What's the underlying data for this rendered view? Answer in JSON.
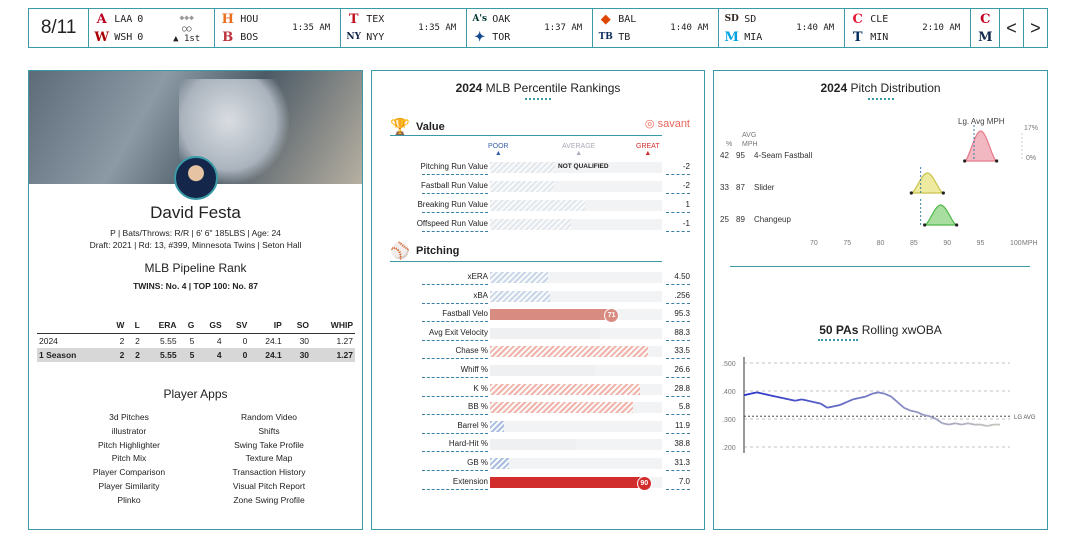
{
  "scoreboard": {
    "date": "8/11",
    "games": [
      {
        "away": "LAA",
        "away_score": "0",
        "home": "WSH",
        "home_score": "0",
        "status": "1st",
        "away_logo": "A",
        "home_logo": "W",
        "away_color": "#ba0021",
        "home_color": "#ab0003"
      },
      {
        "away": "HOU",
        "home": "BOS",
        "time": "1:35 AM",
        "away_logo": "H",
        "home_logo": "B",
        "away_color": "#eb6e1f",
        "home_color": "#bd3039"
      },
      {
        "away": "TEX",
        "home": "NYY",
        "time": "1:35 AM",
        "away_logo": "T",
        "home_logo": "NY",
        "away_color": "#c0111f",
        "home_color": "#132448"
      },
      {
        "away": "OAK",
        "home": "TOR",
        "time": "1:37 AM",
        "away_logo": "A's",
        "home_logo": "✦",
        "away_color": "#003831",
        "home_color": "#134a8e"
      },
      {
        "away": "BAL",
        "home": "TB",
        "time": "1:40 AM",
        "away_logo": "◆",
        "home_logo": "TB",
        "away_color": "#df4601",
        "home_color": "#092c5c"
      },
      {
        "away": "SD",
        "home": "MIA",
        "time": "1:40 AM",
        "away_logo": "SD",
        "home_logo": "M",
        "away_color": "#2f241d",
        "home_color": "#00a3e0"
      },
      {
        "away": "CLE",
        "home": "MIN",
        "time": "2:10 AM",
        "away_logo": "C",
        "home_logo": "T",
        "away_color": "#e31937",
        "home_color": "#002b5c"
      }
    ],
    "extra_logos": [
      {
        "logo": "C",
        "color": "#c6011f"
      },
      {
        "logo": "M",
        "color": "#12284b"
      }
    ],
    "prev": "<",
    "next": ">"
  },
  "player": {
    "name": "David Festa",
    "info_line": "P | Bats/Throws: R/R | 6' 6\" 185LBS | Age: 24",
    "draft_line": "Draft: 2021 | Rd: 13, #399, Minnesota Twins | Seton Hall",
    "pipeline_title": "MLB Pipeline Rank",
    "pipeline_line": "TWINS: No. 4 | TOP 100: No. 87",
    "stats_headers": [
      "",
      "W",
      "L",
      "ERA",
      "G",
      "GS",
      "SV",
      "IP",
      "SO",
      "WHIP"
    ],
    "stats_rows": [
      [
        "2024",
        "2",
        "2",
        "5.55",
        "5",
        "4",
        "0",
        "24.1",
        "30",
        "1.27"
      ],
      [
        "1 Season",
        "2",
        "2",
        "5.55",
        "5",
        "4",
        "0",
        "24.1",
        "30",
        "1.27"
      ]
    ],
    "apps_title": "Player Apps",
    "apps": [
      "3d Pitches",
      "Random Video",
      "illustrator",
      "Shifts",
      "Pitch Highlighter",
      "Swing Take Profile",
      "Pitch Mix",
      "Texture Map",
      "Player Comparison",
      "Transaction History",
      "Player Similarity",
      "Visual Pitch Report",
      "Plinko",
      "Zone Swing Profile"
    ]
  },
  "percentiles": {
    "title_year": "2024",
    "title_rest": "MLB Percentile Rankings",
    "value_section": "Value",
    "savant_label": "savant",
    "scale": [
      "POOR",
      "AVERAGE",
      "GREAT"
    ],
    "not_qualified": "NOT QUALIFIED",
    "value_rows": [
      {
        "label": "Pitching Run Value",
        "value": "-2",
        "pct": 38
      },
      {
        "label": "Fastball Run Value",
        "value": "-2",
        "pct": 37
      },
      {
        "label": "Breaking Run Value",
        "value": "1",
        "pct": 55
      },
      {
        "label": "Offspeed Run Value",
        "value": "-1",
        "pct": 47
      }
    ],
    "pitching_section": "Pitching",
    "pitching_rows": [
      {
        "label": "xERA",
        "value": "4.50",
        "pct": 34,
        "color": "#c9d6ea"
      },
      {
        "label": "xBA",
        "value": ".256",
        "pct": 35,
        "color": "#c9d6ea"
      },
      {
        "label": "Fastball Velo",
        "value": "95.3",
        "pct": 71,
        "color": "#d88b80",
        "badge": "71"
      },
      {
        "label": "Avg Exit Velocity",
        "value": "88.3",
        "pct": 64,
        "color": "#eef0f2"
      },
      {
        "label": "Chase %",
        "value": "33.5",
        "pct": 92,
        "color": "#f2b3ab"
      },
      {
        "label": "Whiff %",
        "value": "26.6",
        "pct": 61,
        "color": "#eef0f2"
      },
      {
        "label": "K %",
        "value": "28.8",
        "pct": 87,
        "color": "#f2b3ab"
      },
      {
        "label": "BB %",
        "value": "5.8",
        "pct": 83,
        "color": "#f2b3ab"
      },
      {
        "label": "Barrel %",
        "value": "11.9",
        "pct": 8,
        "color": "#a9bde0"
      },
      {
        "label": "Hard-Hit %",
        "value": "38.8",
        "pct": 50,
        "color": "#eef0f2"
      },
      {
        "label": "GB %",
        "value": "31.3",
        "pct": 11,
        "color": "#a9bde0"
      },
      {
        "label": "Extension",
        "value": "7.0",
        "pct": 90,
        "color": "#d22d2d",
        "badge": "90"
      }
    ]
  },
  "pitch_dist": {
    "title_year": "2024",
    "title_rest": "Pitch Distribution",
    "lg_label": "Lg. Avg MPH",
    "col_pct": "%",
    "col_avg": "AVG",
    "col_mph": "MPH",
    "pct_top": "17%",
    "pct_zero": "0%",
    "pitches": [
      {
        "pct": "42",
        "avg": "95",
        "name": "4-Seam Fastball",
        "color": "#e87a8a",
        "fill": "#f2b8c1",
        "peak": 95,
        "lg": 94
      },
      {
        "pct": "33",
        "avg": "87",
        "name": "Slider",
        "color": "#c9c24a",
        "fill": "#eeeaa0",
        "peak": 87,
        "lg": 86
      },
      {
        "pct": "25",
        "avg": "89",
        "name": "Changeup",
        "color": "#4fb84a",
        "fill": "#a8dea0",
        "peak": 89,
        "lg": 86
      }
    ],
    "x_ticks": [
      "70",
      "75",
      "80",
      "85",
      "90",
      "95",
      "100"
    ],
    "x_unit": "MPH"
  },
  "xwoba": {
    "title_bold": "50 PAs",
    "title_rest": "Rolling xwOBA",
    "y_ticks": [
      ".500",
      ".400",
      ".300",
      ".200"
    ],
    "lg_avg_label": "LG AVG",
    "lg_avg": 0.31,
    "series": [
      0.385,
      0.39,
      0.395,
      0.39,
      0.385,
      0.38,
      0.375,
      0.37,
      0.365,
      0.37,
      0.365,
      0.36,
      0.355,
      0.34,
      0.345,
      0.35,
      0.36,
      0.37,
      0.375,
      0.38,
      0.39,
      0.395,
      0.39,
      0.38,
      0.36,
      0.34,
      0.33,
      0.325,
      0.315,
      0.31,
      0.3,
      0.285,
      0.28,
      0.285,
      0.28,
      0.285,
      0.28,
      0.28,
      0.275,
      0.28,
      0.28
    ]
  }
}
